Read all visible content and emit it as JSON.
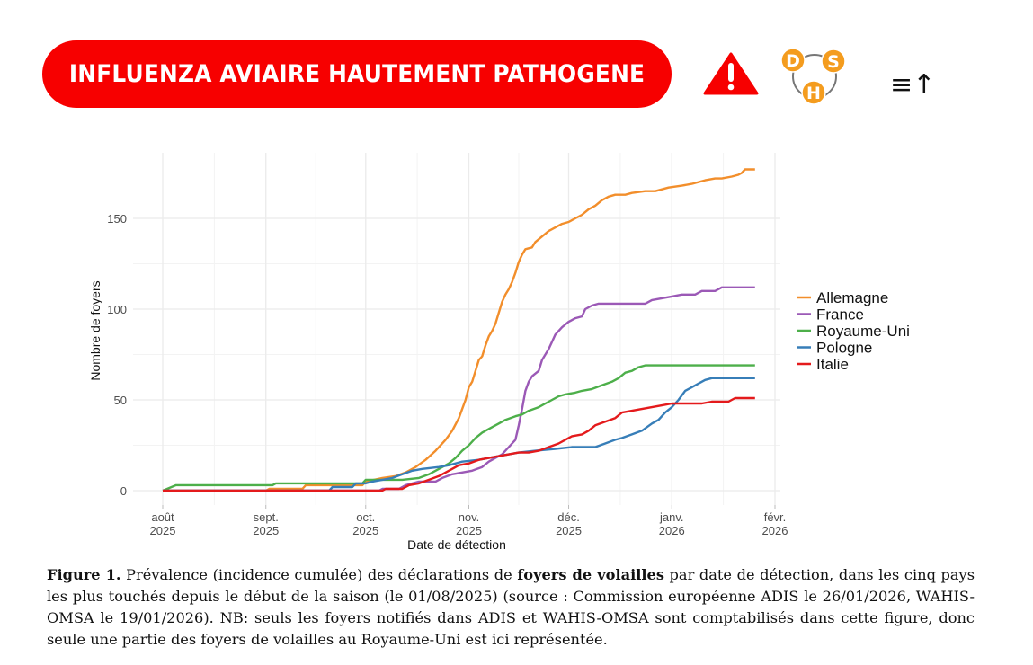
{
  "header": {
    "title": "INFLUENZA AVIAIRE HAUTEMENT PATHOGENE",
    "icons": {
      "warning": "warning-triangle-icon",
      "logo_letters": [
        "D",
        "S",
        "H"
      ],
      "sort": "≡↑"
    }
  },
  "colors": {
    "banner": "#f70000",
    "Allemagne": "#f28e2b",
    "France": "#9b59b6",
    "Royaume-Uni": "#4daf4a",
    "Pologne": "#377eb8",
    "Italie": "#e41a1c",
    "logo_orange": "#f49c1e"
  },
  "chart_data": {
    "type": "line",
    "title": "",
    "xlabel": "Date de détection",
    "ylabel": "Nombre de foyers",
    "x_unit": "days since 2025-08-01",
    "xlim": [
      -8,
      187
    ],
    "ylim": [
      -8,
      186
    ],
    "x_ticks": [
      {
        "day": 0,
        "label": [
          "août",
          "2025"
        ]
      },
      {
        "day": 31,
        "label": [
          "sept.",
          "2025"
        ]
      },
      {
        "day": 61,
        "label": [
          "oct.",
          "2025"
        ]
      },
      {
        "day": 92,
        "label": [
          "nov.",
          "2025"
        ]
      },
      {
        "day": 122,
        "label": [
          "déc.",
          "2025"
        ]
      },
      {
        "day": 153,
        "label": [
          "janv.",
          "2026"
        ]
      },
      {
        "day": 184,
        "label": [
          "févr.",
          "2026"
        ]
      }
    ],
    "y_ticks": [
      0,
      50,
      100,
      150
    ],
    "y_minor": [
      25,
      75,
      125,
      175
    ],
    "grid": true,
    "legend_position": "right",
    "series": [
      {
        "name": "Allemagne",
        "points": [
          [
            0,
            0
          ],
          [
            31,
            0
          ],
          [
            32,
            1
          ],
          [
            42,
            1
          ],
          [
            43,
            3
          ],
          [
            60,
            3
          ],
          [
            61,
            5
          ],
          [
            66,
            7
          ],
          [
            70,
            8
          ],
          [
            73,
            10
          ],
          [
            76,
            13
          ],
          [
            79,
            17
          ],
          [
            82,
            22
          ],
          [
            85,
            28
          ],
          [
            87,
            33
          ],
          [
            89,
            40
          ],
          [
            91,
            50
          ],
          [
            92,
            57
          ],
          [
            93,
            60
          ],
          [
            94,
            66
          ],
          [
            95,
            72
          ],
          [
            96,
            74
          ],
          [
            97,
            80
          ],
          [
            98,
            85
          ],
          [
            99,
            88
          ],
          [
            100,
            92
          ],
          [
            101,
            98
          ],
          [
            102,
            104
          ],
          [
            103,
            108
          ],
          [
            104,
            111
          ],
          [
            105,
            115
          ],
          [
            106,
            120
          ],
          [
            107,
            126
          ],
          [
            108,
            130
          ],
          [
            109,
            133
          ],
          [
            111,
            134
          ],
          [
            112,
            137
          ],
          [
            114,
            140
          ],
          [
            116,
            143
          ],
          [
            118,
            145
          ],
          [
            120,
            147
          ],
          [
            122,
            148
          ],
          [
            124,
            150
          ],
          [
            126,
            152
          ],
          [
            128,
            155
          ],
          [
            130,
            157
          ],
          [
            132,
            160
          ],
          [
            134,
            162
          ],
          [
            136,
            163
          ],
          [
            139,
            163
          ],
          [
            141,
            164
          ],
          [
            145,
            165
          ],
          [
            148,
            165
          ],
          [
            150,
            166
          ],
          [
            152,
            167
          ],
          [
            156,
            168
          ],
          [
            159,
            169
          ],
          [
            161,
            170
          ],
          [
            163,
            171
          ],
          [
            166,
            172
          ],
          [
            168,
            172
          ],
          [
            171,
            173
          ],
          [
            173,
            174
          ],
          [
            174,
            175
          ],
          [
            175,
            177
          ],
          [
            178,
            177
          ]
        ]
      },
      {
        "name": "France",
        "points": [
          [
            0,
            0
          ],
          [
            65,
            0
          ],
          [
            66,
            1
          ],
          [
            71,
            1
          ],
          [
            73,
            3
          ],
          [
            77,
            5
          ],
          [
            82,
            5
          ],
          [
            84,
            7
          ],
          [
            87,
            9
          ],
          [
            90,
            10
          ],
          [
            93,
            11
          ],
          [
            96,
            13
          ],
          [
            98,
            16
          ],
          [
            100,
            18
          ],
          [
            102,
            20
          ],
          [
            104,
            24
          ],
          [
            106,
            28
          ],
          [
            107,
            36
          ],
          [
            108,
            45
          ],
          [
            109,
            55
          ],
          [
            110,
            60
          ],
          [
            111,
            63
          ],
          [
            113,
            66
          ],
          [
            114,
            72
          ],
          [
            116,
            78
          ],
          [
            117,
            82
          ],
          [
            118,
            86
          ],
          [
            120,
            90
          ],
          [
            122,
            93
          ],
          [
            124,
            95
          ],
          [
            126,
            96
          ],
          [
            127,
            100
          ],
          [
            129,
            102
          ],
          [
            131,
            103
          ],
          [
            136,
            103
          ],
          [
            141,
            103
          ],
          [
            145,
            103
          ],
          [
            147,
            105
          ],
          [
            150,
            106
          ],
          [
            153,
            107
          ],
          [
            156,
            108
          ],
          [
            160,
            108
          ],
          [
            162,
            110
          ],
          [
            166,
            110
          ],
          [
            168,
            112
          ],
          [
            178,
            112
          ]
        ]
      },
      {
        "name": "Royaume-Uni",
        "points": [
          [
            0,
            0
          ],
          [
            4,
            3
          ],
          [
            33,
            3
          ],
          [
            34,
            4
          ],
          [
            60,
            4
          ],
          [
            61,
            6
          ],
          [
            72,
            6
          ],
          [
            77,
            7
          ],
          [
            80,
            9
          ],
          [
            83,
            12
          ],
          [
            86,
            15
          ],
          [
            88,
            18
          ],
          [
            90,
            22
          ],
          [
            92,
            25
          ],
          [
            94,
            29
          ],
          [
            96,
            32
          ],
          [
            99,
            35
          ],
          [
            101,
            37
          ],
          [
            103,
            39
          ],
          [
            106,
            41
          ],
          [
            108,
            42
          ],
          [
            110,
            44
          ],
          [
            113,
            46
          ],
          [
            115,
            48
          ],
          [
            117,
            50
          ],
          [
            119,
            52
          ],
          [
            121,
            53
          ],
          [
            124,
            54
          ],
          [
            126,
            55
          ],
          [
            129,
            56
          ],
          [
            132,
            58
          ],
          [
            135,
            60
          ],
          [
            137,
            62
          ],
          [
            139,
            65
          ],
          [
            141,
            66
          ],
          [
            143,
            68
          ],
          [
            145,
            69
          ],
          [
            150,
            69
          ],
          [
            160,
            69
          ],
          [
            170,
            69
          ],
          [
            178,
            69
          ]
        ]
      },
      {
        "name": "Pologne",
        "points": [
          [
            0,
            0
          ],
          [
            50,
            0
          ],
          [
            51,
            2
          ],
          [
            57,
            2
          ],
          [
            58,
            4
          ],
          [
            61,
            4
          ],
          [
            63,
            5
          ],
          [
            66,
            6
          ],
          [
            69,
            7
          ],
          [
            72,
            9
          ],
          [
            75,
            11
          ],
          [
            78,
            12
          ],
          [
            83,
            13
          ],
          [
            86,
            14
          ],
          [
            90,
            16
          ],
          [
            95,
            17
          ],
          [
            98,
            18
          ],
          [
            101,
            19
          ],
          [
            104,
            20
          ],
          [
            107,
            21
          ],
          [
            112,
            22
          ],
          [
            118,
            23
          ],
          [
            123,
            24
          ],
          [
            130,
            24
          ],
          [
            133,
            26
          ],
          [
            136,
            28
          ],
          [
            138,
            29
          ],
          [
            141,
            31
          ],
          [
            144,
            33
          ],
          [
            147,
            37
          ],
          [
            149,
            39
          ],
          [
            151,
            43
          ],
          [
            153,
            46
          ],
          [
            155,
            50
          ],
          [
            157,
            55
          ],
          [
            159,
            57
          ],
          [
            161,
            59
          ],
          [
            163,
            61
          ],
          [
            165,
            62
          ],
          [
            170,
            62
          ],
          [
            178,
            62
          ]
        ]
      },
      {
        "name": "Italie",
        "points": [
          [
            0,
            0
          ],
          [
            66,
            0
          ],
          [
            67,
            1
          ],
          [
            72,
            1
          ],
          [
            74,
            3
          ],
          [
            77,
            4
          ],
          [
            80,
            6
          ],
          [
            83,
            8
          ],
          [
            86,
            11
          ],
          [
            89,
            14
          ],
          [
            92,
            15
          ],
          [
            95,
            17
          ],
          [
            98,
            18
          ],
          [
            101,
            19
          ],
          [
            104,
            20
          ],
          [
            107,
            21
          ],
          [
            110,
            21
          ],
          [
            113,
            22
          ],
          [
            116,
            24
          ],
          [
            119,
            26
          ],
          [
            121,
            28
          ],
          [
            123,
            30
          ],
          [
            126,
            31
          ],
          [
            128,
            33
          ],
          [
            130,
            36
          ],
          [
            133,
            38
          ],
          [
            136,
            40
          ],
          [
            138,
            43
          ],
          [
            141,
            44
          ],
          [
            144,
            45
          ],
          [
            147,
            46
          ],
          [
            150,
            47
          ],
          [
            153,
            48
          ],
          [
            157,
            48
          ],
          [
            162,
            48
          ],
          [
            165,
            49
          ],
          [
            170,
            49
          ],
          [
            172,
            51
          ],
          [
            178,
            51
          ]
        ]
      }
    ]
  },
  "caption": {
    "label": "Figure 1.",
    "text_1": " Prévalence (incidence cumulée) des déclarations de ",
    "bold": "foyers de volailles",
    "text_2": " par date de détection, dans les cinq pays les plus touchés depuis le début de la saison (le 01/08/2025) (source : Commission européenne ADIS le 26/01/2026, WAHIS-OMSA le 19/01/2026). NB: seuls les foyers notifiés dans ADIS et WAHIS-OMSA sont comptabilisés dans cette figure, donc seule une partie des foyers de volailles au Royaume-Uni est ici représentée."
  }
}
